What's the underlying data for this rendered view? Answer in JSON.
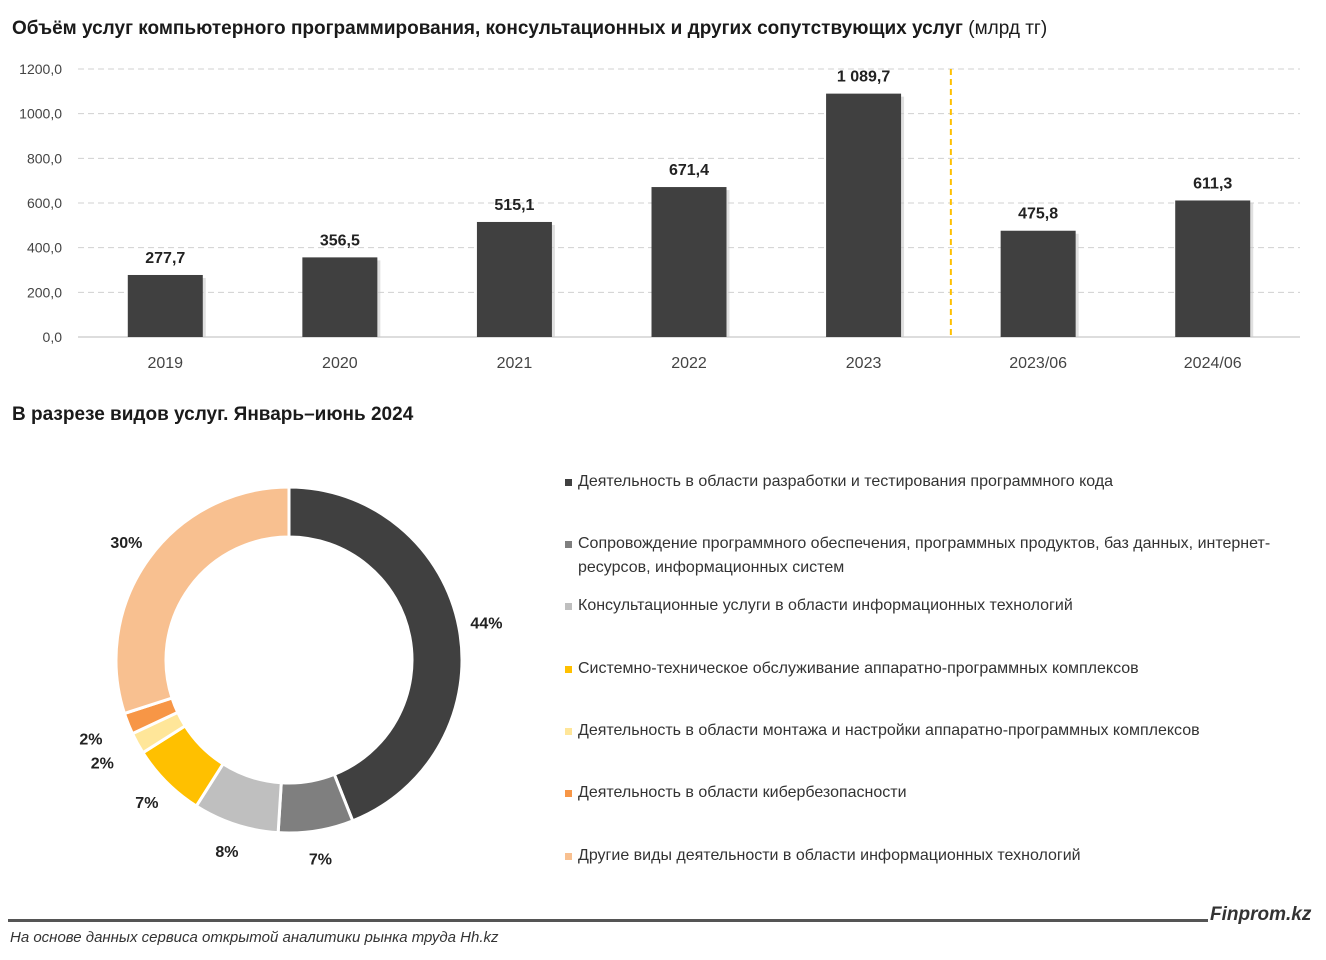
{
  "chart_data": [
    {
      "type": "bar",
      "title": "Объём услуг компьютерного программирования, консультационных и других сопутствующих услуг",
      "unit": "(млрд тг)",
      "categories": [
        "2019",
        "2020",
        "2021",
        "2022",
        "2023",
        "2023/06",
        "2024/06"
      ],
      "values": [
        277.7,
        356.5,
        515.1,
        671.4,
        1089.7,
        475.8,
        611.3
      ],
      "data_labels": [
        "277,7",
        "356,5",
        "515,1",
        "671,4",
        "1 089,7",
        "475,8",
        "611,3"
      ],
      "ylim": [
        0,
        1200
      ],
      "yticks": [
        "0,0",
        "200,0",
        "400,0",
        "600,0",
        "800,0",
        "1000,0",
        "1200,0"
      ],
      "grid": true,
      "bar_color": "#404040",
      "separator_color": "#FFC000"
    },
    {
      "type": "pie",
      "title": "В разрезе видов услуг. Январь–июнь 2024",
      "donut": true,
      "legend_position": "right",
      "slices": [
        {
          "label": "Деятельность в области разработки и тестирования программного кода",
          "value": 44,
          "display": "44%",
          "color": "#404040"
        },
        {
          "label": "Сопровождение программного обеспечения, программных продуктов, баз данных, интернет-ресурсов, информационных систем",
          "value": 7,
          "display": "7%",
          "color": "#7F7F7F"
        },
        {
          "label": "Консультационные услуги в области информационных технологий",
          "value": 8,
          "display": "8%",
          "color": "#BFBFBF"
        },
        {
          "label": "Системно-техническое обслуживание аппаратно-программных комплексов",
          "value": 7,
          "display": "7%",
          "color": "#FFC000"
        },
        {
          "label": "Деятельность в области монтажа и настройки аппаратно-программных комплексов",
          "value": 2,
          "display": "2%",
          "color": "#FFE699"
        },
        {
          "label": "Деятельность в области кибербезопасности",
          "value": 2,
          "display": "2%",
          "color": "#F79646"
        },
        {
          "label": "Другие виды деятельности в области информационных технологий",
          "value": 30,
          "display": "30%",
          "color": "#F8C090"
        }
      ]
    }
  ],
  "footer": {
    "brand": "Finprom.kz",
    "source": "На основе данных сервиса открытой аналитики рынка труда Hh.kz"
  }
}
